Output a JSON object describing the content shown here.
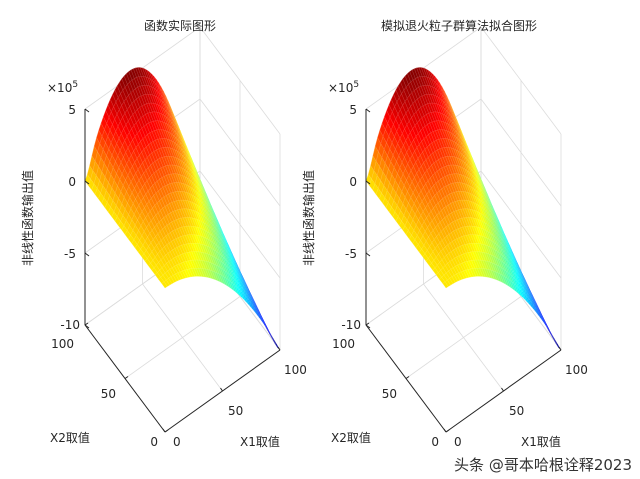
{
  "chart_data": [
    {
      "type": "surface",
      "title": "函数实际图形",
      "xlabel": "X1取值",
      "ylabel": "X2取值",
      "zlabel": "非线性函数输出值",
      "z_exponent_label": "×10",
      "z_exponent": "5",
      "xlim": [
        0,
        100
      ],
      "ylim": [
        0,
        100
      ],
      "zlim": [
        -10,
        5
      ],
      "z_units": "1e5",
      "x_ticks": [
        "0",
        "50",
        "100"
      ],
      "y_ticks": [
        "0",
        "50",
        "100"
      ],
      "z_ticks": [
        "5",
        "0",
        "-5",
        "-10"
      ],
      "grid": true,
      "colormap": "jet",
      "x1_samples": [
        0,
        10,
        20,
        30,
        40,
        50,
        60,
        70,
        80,
        90,
        100
      ],
      "x2_samples": [
        0,
        50,
        100
      ],
      "z_values": [
        [
          0,
          0,
          0
        ],
        [
          -0.1,
          1.17,
          2.44
        ],
        [
          -0.4,
          1.88,
          4.16
        ],
        [
          -0.9,
          2.13,
          5.16
        ],
        [
          -1.6,
          1.92,
          5.44
        ],
        [
          -2.5,
          1.25,
          5.0
        ],
        [
          -3.6,
          0.12,
          3.84
        ],
        [
          -4.9,
          -1.47,
          1.96
        ],
        [
          -6.4,
          -3.52,
          -0.64
        ],
        [
          -8.1,
          -6.03,
          -3.96
        ],
        [
          -10,
          -9,
          -8
        ]
      ]
    },
    {
      "type": "surface",
      "title": "模拟退火粒子群算法拟合图形",
      "xlabel": "X1取值",
      "ylabel": "X2取值",
      "zlabel": "非线性函数输出值",
      "z_exponent_label": "×10",
      "z_exponent": "5",
      "xlim": [
        0,
        100
      ],
      "ylim": [
        0,
        100
      ],
      "zlim": [
        -10,
        5
      ],
      "z_units": "1e5",
      "x_ticks": [
        "0",
        "50",
        "100"
      ],
      "y_ticks": [
        "0",
        "50",
        "100"
      ],
      "z_ticks": [
        "5",
        "0",
        "-5",
        "-10"
      ],
      "grid": true,
      "colormap": "jet",
      "x1_samples": [
        0,
        10,
        20,
        30,
        40,
        50,
        60,
        70,
        80,
        90,
        100
      ],
      "x2_samples": [
        0,
        50,
        100
      ],
      "z_values": [
        [
          0,
          0,
          0
        ],
        [
          -0.1,
          1.17,
          2.44
        ],
        [
          -0.4,
          1.88,
          4.16
        ],
        [
          -0.9,
          2.13,
          5.16
        ],
        [
          -1.6,
          1.92,
          5.44
        ],
        [
          -2.5,
          1.25,
          5.0
        ],
        [
          -3.6,
          0.12,
          3.84
        ],
        [
          -4.9,
          -1.47,
          1.96
        ],
        [
          -6.4,
          -3.52,
          -0.64
        ],
        [
          -8.1,
          -6.03,
          -3.96
        ],
        [
          -10,
          -9,
          -8
        ]
      ]
    }
  ],
  "watermark": "头条 @哥本哈根诠释2023"
}
